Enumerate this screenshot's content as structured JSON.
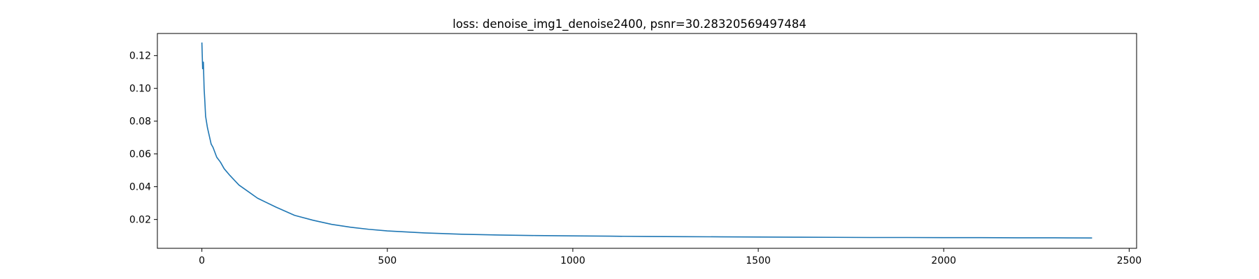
{
  "chart_data": {
    "type": "line",
    "title": "loss: denoise_img1_denoise2400, psnr=30.28320569497484",
    "xlabel": "",
    "ylabel": "",
    "xlim": [
      -120,
      2520
    ],
    "ylim": [
      0.0024,
      0.1335
    ],
    "xticks": [
      0,
      500,
      1000,
      1500,
      2000,
      2500
    ],
    "xtick_labels": [
      "0",
      "500",
      "1000",
      "1500",
      "2000",
      "2500"
    ],
    "yticks": [
      0.02,
      0.04,
      0.06,
      0.08,
      0.1,
      0.12
    ],
    "ytick_labels": [
      "0.02",
      "0.04",
      "0.06",
      "0.08",
      "0.10",
      "0.12"
    ],
    "grid": false,
    "legend": false,
    "line_color": "#1f77b4",
    "series": [
      {
        "x": [
          0,
          2,
          4,
          6,
          8,
          10,
          15,
          20,
          25,
          30,
          40,
          50,
          60,
          75,
          100,
          125,
          150,
          200,
          250,
          300,
          350,
          400,
          450,
          500,
          600,
          700,
          800,
          900,
          1000,
          1100,
          1200,
          1300,
          1400,
          1500,
          1600,
          1700,
          1800,
          1900,
          2000,
          2100,
          2200,
          2300,
          2400
        ],
        "y": [
          0.128,
          0.112,
          0.116,
          0.1,
          0.092,
          0.083,
          0.076,
          0.071,
          0.066,
          0.064,
          0.058,
          0.055,
          0.051,
          0.047,
          0.041,
          0.037,
          0.033,
          0.0275,
          0.0225,
          0.0195,
          0.017,
          0.0153,
          0.014,
          0.013,
          0.0118,
          0.011,
          0.0105,
          0.0102,
          0.01,
          0.0098,
          0.0096,
          0.0095,
          0.0094,
          0.0093,
          0.0092,
          0.0091,
          0.009,
          0.009,
          0.0089,
          0.0089,
          0.0088,
          0.0088,
          0.0087
        ]
      }
    ]
  }
}
